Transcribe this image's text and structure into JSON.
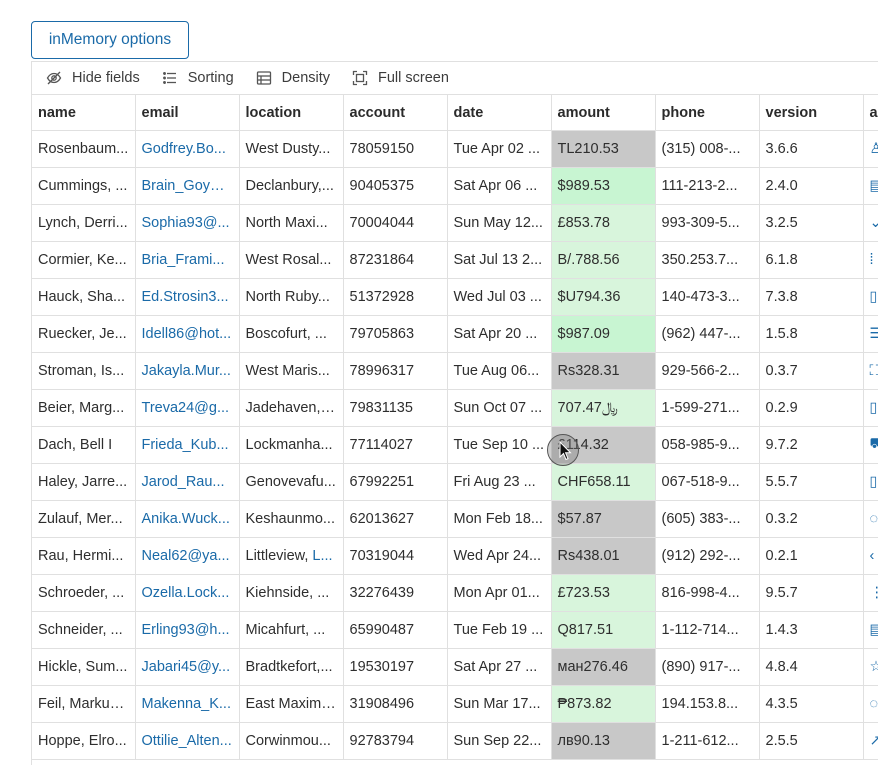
{
  "options_button": "inMemory options",
  "toolbar": {
    "hide_fields": "Hide fields",
    "sorting": "Sorting",
    "density": "Density",
    "full_screen": "Full screen"
  },
  "columns": [
    "name",
    "email",
    "location",
    "account",
    "date",
    "amount",
    "phone",
    "version",
    "ac"
  ],
  "colors": {
    "accent": "#1a6aa8",
    "amount_green": "#c8f5d2",
    "amount_light_green": "#d8f5dc",
    "amount_grey": "#c8c8c8"
  },
  "rows": [
    {
      "name": "Rosenbaum...",
      "email": "Godfrey.Bo...",
      "location": "West Dusty...",
      "account": "78059150",
      "date": "Tue Apr 02 ...",
      "amount": "TL210.53",
      "amount_color": "#c8c8c8",
      "phone": "(315) 008-...",
      "version": "3.6.6",
      "icon": "user-icon"
    },
    {
      "name": "Cummings, ...",
      "email": "Brain_Goyet...",
      "location": "Declanbury,...",
      "account": "90405375",
      "date": "Sat Apr 06 ...",
      "amount": "$989.53",
      "amount_color": "#c8f5d2",
      "phone": "111-213-2...",
      "version": "2.4.0",
      "icon": "grid-icon"
    },
    {
      "name": "Lynch, Derri...",
      "email": "Sophia93@...",
      "location": "North Maxi...",
      "account": "70004044",
      "date": "Sun May 12...",
      "amount": "£853.78",
      "amount_color": "#d8f5dc",
      "phone": "993-309-5...",
      "version": "3.2.5",
      "icon": "chevron-down-icon"
    },
    {
      "name": "Cormier, Ke...",
      "email": "Bria_Frami...",
      "location": "West Rosal...",
      "account": "87231864",
      "date": "Sat Jul 13 2...",
      "amount": "B/.788.56",
      "amount_color": "#d8f5dc",
      "phone": "350.253.7...",
      "version": "6.1.8",
      "icon": "dots-icon"
    },
    {
      "name": "Hauck, Sha...",
      "email": "Ed.Strosin3...",
      "location": "North Ruby...",
      "account": "51372928",
      "date": "Wed Jul 03 ...",
      "amount": "$U794.36",
      "amount_color": "#d8f5dc",
      "phone": "140-473-3...",
      "version": "7.3.8",
      "icon": "file-icon"
    },
    {
      "name": "Ruecker, Je...",
      "email": "Idell86@hot...",
      "location": "Boscofurt, ...",
      "account": "79705863",
      "date": "Sat Apr 20 ...",
      "amount": "$987.09",
      "amount_color": "#c8f5d2",
      "phone": "(962) 447-...",
      "version": "1.5.8",
      "icon": "menu-icon"
    },
    {
      "name": "Stroman, Is...",
      "email": "Jakayla.Mur...",
      "location": "West Maris...",
      "account": "78996317",
      "date": "Tue Aug 06...",
      "amount": "Rs328.31",
      "amount_color": "#c8c8c8",
      "phone": "929-566-2...",
      "version": "0.3.7",
      "icon": "frame-icon"
    },
    {
      "name": "Beier, Marg...",
      "email": "Treva24@g...",
      "location": "Jadehaven, ...",
      "account": "79831135",
      "date": "Sun Oct 07 ...",
      "amount": "707.47﷼",
      "amount_color": "#d8f5dc",
      "phone": "1-599-271...",
      "version": "0.2.9",
      "icon": "file-icon"
    },
    {
      "name": "Dach, Bell I",
      "email": "Frieda_Kub...",
      "location": "Lockmanha...",
      "account": "77114027",
      "date": "Tue Sep 10 ...",
      "amount": "£114.32",
      "amount_color": "#c8c8c8",
      "phone": "058-985-9...",
      "version": "9.7.2",
      "icon": "cart-icon"
    },
    {
      "name": "Haley, Jarre...",
      "email": "Jarod_Rau...",
      "location": "Genovevafu...",
      "account": "67992251",
      "date": "Fri Aug 23 ...",
      "amount": "CHF658.11",
      "amount_color": "#d8f5dc",
      "phone": "067-518-9...",
      "version": "5.5.7",
      "icon": "file-icon"
    },
    {
      "name": "Zulauf, Mer...",
      "email": "Anika.Wuck...",
      "location": "Keshaunmo...",
      "account": "62013627",
      "date": "Mon Feb 18...",
      "amount": "$57.87",
      "amount_color": "#c8c8c8",
      "phone": "(605) 383-...",
      "version": "0.3.2",
      "icon": "circle-icon"
    },
    {
      "name": "Rau, Hermi...",
      "email": "Neal62@ya...",
      "location": "Littleview, ",
      "location_link": "L...",
      "account": "70319044",
      "date": "Wed Apr 24...",
      "amount": "Rs438.01",
      "amount_color": "#c8c8c8",
      "phone": "(912) 292-...",
      "version": "0.2.1",
      "icon": "chevron-left-icon"
    },
    {
      "name": "Schroeder, ...",
      "email": "Ozella.Lock...",
      "location": "Kiehnside, ...",
      "account": "32276439",
      "date": "Mon Apr 01...",
      "amount": "£723.53",
      "amount_color": "#d8f5dc",
      "phone": "816-998-4...",
      "version": "9.5.7",
      "icon": "more-vertical-icon"
    },
    {
      "name": "Schneider, ...",
      "email": "Erling93@h...",
      "location": "Micahfurt, ...",
      "account": "65990487",
      "date": "Tue Feb 19 ...",
      "amount": "Q817.51",
      "amount_color": "#d8f5dc",
      "phone": "1-112-714...",
      "version": "1.4.3",
      "icon": "grid-icon"
    },
    {
      "name": "Hickle, Sum...",
      "email": "Jabari45@y...",
      "location": "Bradtkefort,...",
      "account": "19530197",
      "date": "Sat Apr 27 ...",
      "amount": "ман276.46",
      "amount_color": "#c8c8c8",
      "phone": "(890) 917-...",
      "version": "4.8.4",
      "icon": "star-icon"
    },
    {
      "name": "Feil, Markus...",
      "email": "Makenna_K...",
      "location": "East Maximi...",
      "account": "31908496",
      "date": "Sun Mar 17...",
      "amount": "₱873.82",
      "amount_color": "#d8f5dc",
      "phone": "194.153.8...",
      "version": "4.3.5",
      "icon": "circle-icon"
    },
    {
      "name": "Hoppe, Elro...",
      "email": "Ottilie_Alten...",
      "location": "Corwinmou...",
      "account": "92783794",
      "date": "Sun Sep 22...",
      "amount": "лв90.13",
      "amount_color": "#c8c8c8",
      "phone": "1-211-612...",
      "version": "2.5.5",
      "icon": "trend-icon"
    }
  ]
}
